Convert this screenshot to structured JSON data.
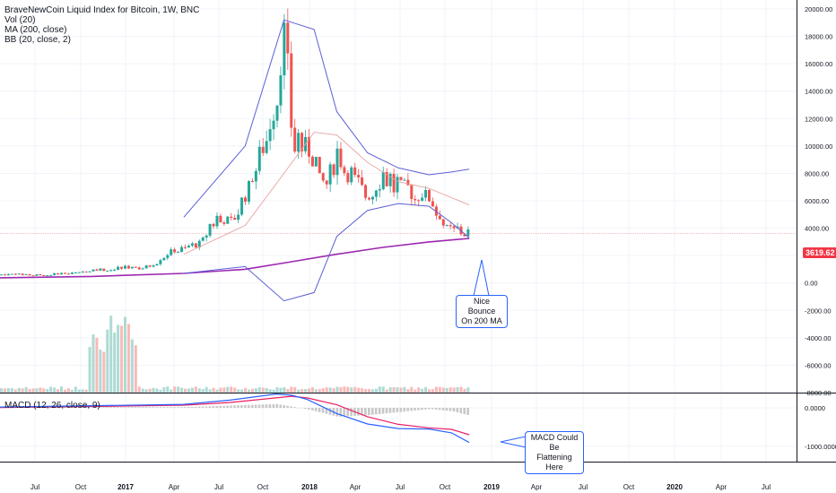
{
  "legend": {
    "title": "BraveNewCoin Liquid Index for Bitcoin, 1W, BNC",
    "vol": "Vol (20)",
    "ma": "MA (200, close)",
    "bb": "BB (20, close, 2)",
    "macd": "MACD (12, 26, close, 9)"
  },
  "annotations": {
    "bounce": [
      "Nice Bounce",
      "On 200 MA"
    ],
    "macd": [
      "MACD Could Be",
      "Flattening Here"
    ]
  },
  "price_label": "3619.62",
  "colors": {
    "up": "#26a69a",
    "down": "#ef5350",
    "ma": "#9c27b0",
    "bb": "#5b5fd6",
    "macd": "#2962ff",
    "signal": "#e91e63",
    "hist": "#c8c8c8",
    "price_badge": "#f23645"
  },
  "chart_data": [
    {
      "type": "candlestick",
      "title": "BraveNewCoin Liquid Index for Bitcoin, 1W, BNC",
      "x_ticks": [
        "Jul",
        "Oct",
        "2017",
        "Apr",
        "Jul",
        "Oct",
        "2018",
        "Apr",
        "Jul",
        "Oct",
        "2019",
        "Apr",
        "Jul",
        "Oct",
        "2020",
        "Apr",
        "Jul"
      ],
      "y_ticks": [
        "20000.00",
        "18000.00",
        "16000.00",
        "14000.00",
        "12000.00",
        "10000.00",
        "8000.00",
        "6000.00",
        "4000.00",
        "2000.00",
        "0.00",
        "-2000.00",
        "-4000.00",
        "-6000.00",
        "-8000.00"
      ],
      "ylim": [
        -8000,
        20000
      ],
      "last_price": 3619.62,
      "series": [
        {
          "name": "price",
          "points": [
            [
              "2016-06-01",
              580
            ],
            [
              "2016-07-01",
              660
            ],
            [
              "2016-08-01",
              580
            ],
            [
              "2016-09-01",
              610
            ],
            [
              "2016-10-01",
              700
            ],
            [
              "2016-11-01",
              740
            ],
            [
              "2016-12-01",
              960
            ],
            [
              "2017-01-01",
              970
            ],
            [
              "2017-02-01",
              1190
            ],
            [
              "2017-03-01",
              1070
            ],
            [
              "2017-04-01",
              1350
            ],
            [
              "2017-05-01",
              2300
            ],
            [
              "2017-06-01",
              2480
            ],
            [
              "2017-07-01",
              2870
            ],
            [
              "2017-08-01",
              4700
            ],
            [
              "2017-09-01",
              4340
            ],
            [
              "2017-10-01",
              6450
            ],
            [
              "2017-11-01",
              9900
            ],
            [
              "2017-12-01",
              13800
            ],
            [
              "2017-12-17",
              19000
            ],
            [
              "2018-01-01",
              10200
            ],
            [
              "2018-02-01",
              10300
            ],
            [
              "2018-03-01",
              6900
            ],
            [
              "2018-04-01",
              9200
            ],
            [
              "2018-05-01",
              7500
            ],
            [
              "2018-06-01",
              6400
            ],
            [
              "2018-07-01",
              7700
            ],
            [
              "2018-08-01",
              7000
            ],
            [
              "2018-09-01",
              6600
            ],
            [
              "2018-10-01",
              6300
            ],
            [
              "2018-11-01",
              4000
            ],
            [
              "2018-12-01",
              3700
            ],
            [
              "2018-12-20",
              3620
            ]
          ]
        },
        {
          "name": "MA (200, close)",
          "points": [
            [
              "2016-06-01",
              380
            ],
            [
              "2016-12-01",
              480
            ],
            [
              "2017-06-01",
              700
            ],
            [
              "2017-10-01",
              1000
            ],
            [
              "2018-01-01",
              1550
            ],
            [
              "2018-04-01",
              2100
            ],
            [
              "2018-07-01",
              2600
            ],
            [
              "2018-10-01",
              3000
            ],
            [
              "2018-12-20",
              3250
            ]
          ]
        },
        {
          "name": "BB upper",
          "points": [
            [
              "2017-06-01",
              4800
            ],
            [
              "2017-10-01",
              10000
            ],
            [
              "2017-12-17",
              19200
            ],
            [
              "2018-02-15",
              18500
            ],
            [
              "2018-04-01",
              12500
            ],
            [
              "2018-06-01",
              9500
            ],
            [
              "2018-08-01",
              8400
            ],
            [
              "2018-10-01",
              7900
            ],
            [
              "2018-11-15",
              8100
            ],
            [
              "2018-12-20",
              8300
            ]
          ]
        },
        {
          "name": "BB basis",
          "points": [
            [
              "2017-06-01",
              2100
            ],
            [
              "2017-10-01",
              4200
            ],
            [
              "2017-12-17",
              8000
            ],
            [
              "2018-02-15",
              11000
            ],
            [
              "2018-04-01",
              10800
            ],
            [
              "2018-06-01",
              8800
            ],
            [
              "2018-08-01",
              7400
            ],
            [
              "2018-10-01",
              6900
            ],
            [
              "2018-12-20",
              5700
            ]
          ]
        },
        {
          "name": "BB lower",
          "points": [
            [
              "2017-06-01",
              700
            ],
            [
              "2017-10-01",
              1200
            ],
            [
              "2017-12-17",
              -1300
            ],
            [
              "2018-02-15",
              -700
            ],
            [
              "2018-04-01",
              3400
            ],
            [
              "2018-06-01",
              5300
            ],
            [
              "2018-08-01",
              5800
            ],
            [
              "2018-10-01",
              5600
            ],
            [
              "2018-11-15",
              4400
            ],
            [
              "2018-12-20",
              3300
            ]
          ]
        }
      ],
      "volume_note": "Vol (20)"
    },
    {
      "type": "bar",
      "title": "MACD (12, 26, close, 9)",
      "y_ticks": [
        "0.0000",
        "-1000.0000"
      ],
      "ylim": [
        -1400,
        350
      ],
      "series": [
        {
          "name": "MACD",
          "points": [
            [
              "2016-06-01",
              20
            ],
            [
              "2017-01-01",
              60
            ],
            [
              "2017-06-01",
              90
            ],
            [
              "2017-09-01",
              200
            ],
            [
              "2017-12-01",
              360
            ],
            [
              "2018-01-01",
              330
            ],
            [
              "2018-02-01",
              220
            ],
            [
              "2018-04-01",
              -150
            ],
            [
              "2018-06-01",
              -420
            ],
            [
              "2018-08-01",
              -540
            ],
            [
              "2018-10-01",
              -550
            ],
            [
              "2018-11-15",
              -650
            ],
            [
              "2018-12-20",
              -900
            ]
          ]
        },
        {
          "name": "Signal",
          "points": [
            [
              "2016-06-01",
              10
            ],
            [
              "2017-01-01",
              40
            ],
            [
              "2017-06-01",
              70
            ],
            [
              "2017-09-01",
              140
            ],
            [
              "2017-12-01",
              260
            ],
            [
              "2018-01-01",
              300
            ],
            [
              "2018-02-01",
              260
            ],
            [
              "2018-04-01",
              80
            ],
            [
              "2018-06-01",
              -230
            ],
            [
              "2018-08-01",
              -430
            ],
            [
              "2018-10-01",
              -520
            ],
            [
              "2018-11-15",
              -560
            ],
            [
              "2018-12-20",
              -700
            ]
          ]
        }
      ]
    }
  ]
}
